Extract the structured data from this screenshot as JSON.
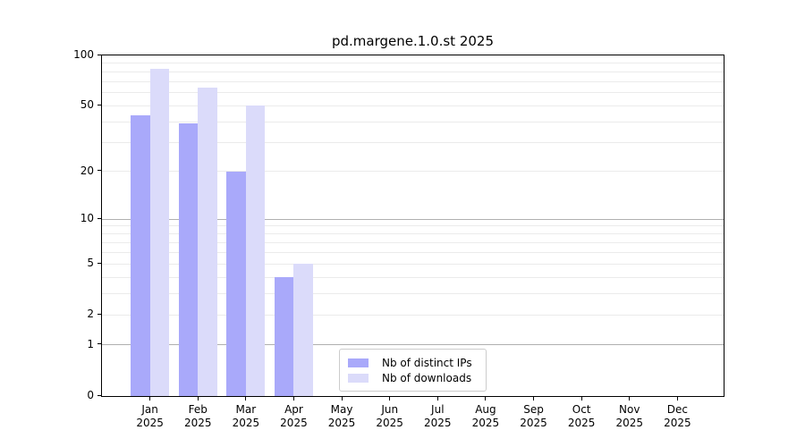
{
  "chart_data": {
    "type": "bar",
    "title": "pd.margene.1.0.st 2025",
    "categories": [
      "Jan",
      "Feb",
      "Mar",
      "Apr",
      "May",
      "Jun",
      "Jul",
      "Aug",
      "Sep",
      "Oct",
      "Nov",
      "Dec"
    ],
    "year_label": "2025",
    "series": [
      {
        "name": "Nb of distinct IPs",
        "color": "#a9a9fa",
        "values": [
          44,
          39,
          20,
          4,
          0,
          0,
          0,
          0,
          0,
          0,
          0,
          0
        ]
      },
      {
        "name": "Nb of downloads",
        "color": "#dbdbfa",
        "values": [
          83,
          64,
          50,
          5,
          0,
          0,
          0,
          0,
          0,
          0,
          0,
          0
        ]
      }
    ],
    "y_scale": "log1p",
    "ylim": [
      0,
      100
    ],
    "y_ticks": [
      0,
      1,
      2,
      5,
      10,
      20,
      50,
      100
    ],
    "y_major_gridlines": [
      1,
      10,
      100
    ],
    "y_minor_gridlines": [
      2,
      3,
      4,
      5,
      6,
      7,
      8,
      9,
      20,
      30,
      40,
      50,
      60,
      70,
      80,
      90
    ],
    "grid": true,
    "legend_position": "lower center",
    "colors": {
      "major_grid": "#b0b0b0",
      "minor_grid": "#ebebeb",
      "axis": "#000000",
      "legend_border": "#cccccc",
      "text": "#000000",
      "background": "#ffffff"
    }
  }
}
